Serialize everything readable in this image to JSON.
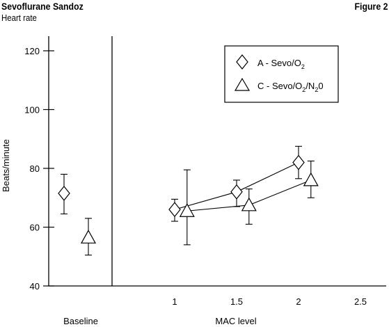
{
  "header": {
    "title": "Sevoflurane Sandoz",
    "subtitle": "Heart rate",
    "figure_label": "Figure 2"
  },
  "chart_data": {
    "type": "scatter",
    "title": "Sevoflurane Sandoz",
    "subtitle": "Heart rate",
    "ylabel": "Beats/minute",
    "ylim": [
      40,
      125
    ],
    "yticks": [
      40,
      60,
      80,
      100,
      120
    ],
    "xlabel": "MAC level",
    "xlim": [
      0.5,
      2.5
    ],
    "xticks": [
      1,
      1.5,
      2,
      2.5
    ],
    "x_tick_labels": [
      "1",
      "1.5",
      "2",
      "2.5"
    ],
    "baseline_label": "Baseline",
    "grid": false,
    "legend_position": "top-right",
    "series": [
      {
        "name": "A - Sevo/O",
        "name_sub": "2",
        "marker": "diamond",
        "baseline": {
          "mean": 71.5,
          "low": 64.5,
          "high": 78
        },
        "points": [
          {
            "x": 1.0,
            "y": 66,
            "low": 62,
            "high": 69.5
          },
          {
            "x": 1.5,
            "y": 72,
            "low": 67,
            "high": 76
          },
          {
            "x": 2.0,
            "y": 82,
            "low": 76.5,
            "high": 87.5
          }
        ]
      },
      {
        "name": "C - Sevo/O",
        "name_sub": "2",
        "name_mid": "/N",
        "name_sub2": "2",
        "name_end": "0",
        "marker": "triangle",
        "baseline": {
          "mean": 56.5,
          "low": 50.5,
          "high": 63
        },
        "points": [
          {
            "x": 1.1,
            "y": 65.5,
            "low": 54,
            "high": 79.5
          },
          {
            "x": 1.6,
            "y": 67.5,
            "low": 61,
            "high": 73
          },
          {
            "x": 2.1,
            "y": 76,
            "low": 70,
            "high": 82.5
          }
        ]
      }
    ]
  }
}
